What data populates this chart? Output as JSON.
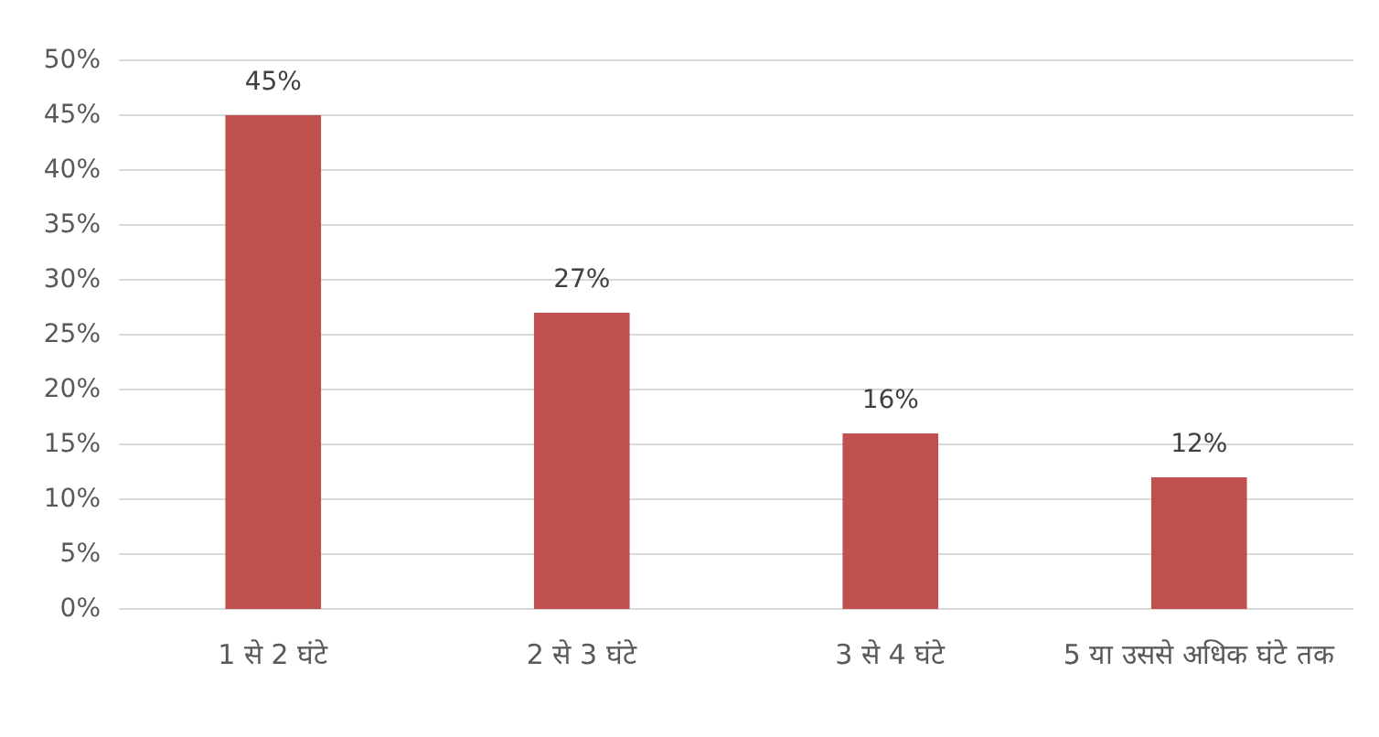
{
  "chart_data": {
    "type": "bar",
    "categories": [
      "1 से 2 घंटे",
      "2 से 3 घंटे",
      "3 से 4 घंटे",
      "5 या उससे अधिक घंटे तक"
    ],
    "values": [
      45,
      27,
      16,
      12
    ],
    "value_labels": [
      "45%",
      "27%",
      "16%",
      "12%"
    ],
    "color": "#c0504d",
    "ylim": [
      0,
      50
    ],
    "yticks": [
      {
        "value": 0,
        "label": "0%"
      },
      {
        "value": 5,
        "label": "5%"
      },
      {
        "value": 10,
        "label": "10%"
      },
      {
        "value": 15,
        "label": "15%"
      },
      {
        "value": 20,
        "label": "20%"
      },
      {
        "value": 25,
        "label": "25%"
      },
      {
        "value": 30,
        "label": "30%"
      },
      {
        "value": 35,
        "label": "35%"
      },
      {
        "value": 40,
        "label": "40%"
      },
      {
        "value": 45,
        "label": "45%"
      },
      {
        "value": 50,
        "label": "50%"
      }
    ],
    "grid": "y"
  }
}
